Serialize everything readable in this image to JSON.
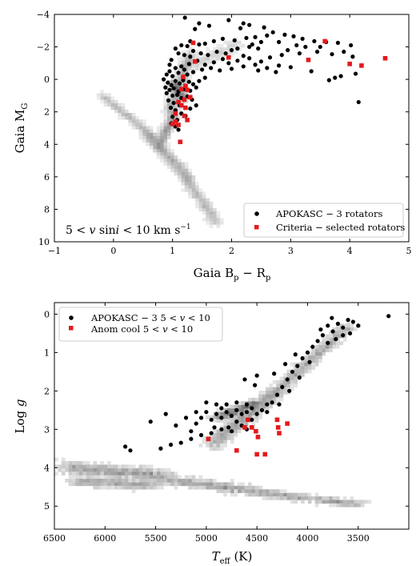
{
  "chart_data": [
    {
      "type": "scatter",
      "xlabel": "Gaia B$_p$ − R$_p$",
      "xlabel_parts": {
        "main": "Gaia B",
        "sub1": "p",
        "mid": " − R",
        "sub2": "p"
      },
      "ylabel_parts": {
        "main": "Gaia M",
        "sub": "G"
      },
      "xlim": [
        -1,
        5
      ],
      "ylim": [
        10,
        -4
      ],
      "y_inverted": true,
      "x_ticks": [
        -1,
        0,
        1,
        2,
        3,
        4,
        5
      ],
      "x_tick_labels": [
        "−1",
        "0",
        "1",
        "2",
        "3",
        "4",
        "5"
      ],
      "y_ticks": [
        -4,
        -2,
        0,
        2,
        4,
        6,
        8,
        10
      ],
      "y_tick_labels": [
        "−4",
        "−2",
        "0",
        "2",
        "4",
        "6",
        "8",
        "10"
      ],
      "annotation": "5 < v sin i < 10 km s⁻¹",
      "legend_position": "bottom-right",
      "background": "grey 2D density histogram (Gaia field stars): red giant branch and main sequence",
      "series": [
        {
          "name": "APOKASC − 3 rotators",
          "marker": "circle",
          "color": "#000000",
          "points": [
            [
              1.21,
              -3.8
            ],
            [
              1.45,
              -3.45
            ],
            [
              1.62,
              -3.3
            ],
            [
              1.38,
              -3.1
            ],
            [
              1.95,
              -3.65
            ],
            [
              2.2,
              -3.45
            ],
            [
              2.3,
              -3.35
            ],
            [
              2.15,
              -3.15
            ],
            [
              2.55,
              -3.2
            ],
            [
              2.7,
              -2.9
            ],
            [
              2.6,
              -2.7
            ],
            [
              2.9,
              -2.75
            ],
            [
              3.05,
              -2.65
            ],
            [
              3.2,
              -2.5
            ],
            [
              3.4,
              -2.35
            ],
            [
              3.6,
              -2.3
            ],
            [
              3.8,
              -2.25
            ],
            [
              4.02,
              -2.1
            ],
            [
              3.5,
              -2.0
            ],
            [
              3.1,
              -2.1
            ],
            [
              2.4,
              -2.6
            ],
            [
              2.25,
              -2.55
            ],
            [
              2.05,
              -2.4
            ],
            [
              1.85,
              -2.5
            ],
            [
              1.7,
              -2.35
            ],
            [
              1.55,
              -2.2
            ],
            [
              1.45,
              -2.15
            ],
            [
              1.3,
              -2.35
            ],
            [
              1.25,
              -2.05
            ],
            [
              1.15,
              -2.1
            ],
            [
              1.05,
              -1.9
            ],
            [
              1.1,
              -1.6
            ],
            [
              1.2,
              -1.5
            ],
            [
              1.3,
              -1.4
            ],
            [
              1.35,
              -1.75
            ],
            [
              1.48,
              -1.6
            ],
            [
              1.6,
              -1.5
            ],
            [
              1.75,
              -1.7
            ],
            [
              1.9,
              -1.6
            ],
            [
              2.0,
              -1.8
            ],
            [
              2.1,
              -1.9
            ],
            [
              2.3,
              -2.0
            ],
            [
              2.45,
              -1.9
            ],
            [
              2.5,
              -2.3
            ],
            [
              2.35,
              -2.15
            ],
            [
              2.8,
              -2.3
            ],
            [
              2.95,
              -1.8
            ],
            [
              3.25,
              -2.0
            ],
            [
              3.45,
              -1.7
            ],
            [
              3.7,
              -1.55
            ],
            [
              3.9,
              -1.7
            ],
            [
              4.05,
              -1.4
            ],
            [
              3.15,
              -1.6
            ],
            [
              2.85,
              -1.5
            ],
            [
              2.65,
              -1.35
            ],
            [
              2.5,
              -1.1
            ],
            [
              2.3,
              -1.3
            ],
            [
              2.2,
              -1.45
            ],
            [
              2.1,
              -1.15
            ],
            [
              1.95,
              -1.0
            ],
            [
              1.85,
              -1.25
            ],
            [
              1.7,
              -1.05
            ],
            [
              1.55,
              -0.9
            ],
            [
              1.42,
              -1.15
            ],
            [
              1.28,
              -0.95
            ],
            [
              1.15,
              -0.8
            ],
            [
              1.05,
              -0.7
            ],
            [
              0.95,
              -0.5
            ],
            [
              0.9,
              -0.3
            ],
            [
              1.0,
              -0.2
            ],
            [
              1.1,
              -0.4
            ],
            [
              1.2,
              -0.6
            ],
            [
              1.25,
              -0.3
            ],
            [
              1.35,
              -0.45
            ],
            [
              1.5,
              -0.6
            ],
            [
              1.65,
              -0.7
            ],
            [
              1.8,
              -0.55
            ],
            [
              2.0,
              -0.65
            ],
            [
              2.2,
              -0.8
            ],
            [
              2.4,
              -0.9
            ],
            [
              2.6,
              -0.7
            ],
            [
              2.8,
              -0.85
            ],
            [
              3.0,
              -0.75
            ],
            [
              3.35,
              -0.5
            ],
            [
              3.75,
              -0.1
            ],
            [
              3.65,
              0.05
            ],
            [
              3.85,
              -0.2
            ],
            [
              4.1,
              -0.35
            ],
            [
              2.75,
              -0.45
            ],
            [
              2.45,
              -0.55
            ],
            [
              0.85,
              0.0
            ],
            [
              0.92,
              0.2
            ],
            [
              0.98,
              0.35
            ],
            [
              1.05,
              0.1
            ],
            [
              1.12,
              0.25
            ],
            [
              1.18,
              0.05
            ],
            [
              1.28,
              0.15
            ],
            [
              1.35,
              0.3
            ],
            [
              1.45,
              0.1
            ],
            [
              1.55,
              -0.1
            ],
            [
              0.88,
              0.5
            ],
            [
              0.95,
              0.65
            ],
            [
              1.02,
              0.55
            ],
            [
              1.1,
              0.75
            ],
            [
              1.2,
              0.6
            ],
            [
              1.3,
              0.7
            ],
            [
              1.4,
              0.5
            ],
            [
              0.9,
              0.85
            ],
            [
              1.0,
              1.0
            ],
            [
              1.08,
              0.95
            ],
            [
              1.15,
              1.15
            ],
            [
              1.25,
              1.05
            ],
            [
              1.33,
              1.25
            ],
            [
              0.93,
              1.3
            ],
            [
              1.02,
              1.45
            ],
            [
              1.12,
              1.6
            ],
            [
              0.97,
              1.75
            ],
            [
              1.05,
              1.9
            ],
            [
              1.15,
              2.1
            ],
            [
              1.0,
              2.3
            ],
            [
              1.08,
              2.5
            ],
            [
              0.98,
              2.7
            ],
            [
              1.05,
              2.9
            ],
            [
              1.1,
              3.1
            ],
            [
              1.22,
              2.25
            ],
            [
              1.3,
              1.8
            ],
            [
              1.4,
              1.6
            ],
            [
              4.15,
              1.4
            ],
            [
              0.95,
              -0.9
            ],
            [
              0.98,
              -1.2
            ]
          ]
        },
        {
          "name": "Criteria − selected rotators",
          "marker": "square",
          "color": "#e41a1c",
          "points": [
            [
              1.35,
              -2.25
            ],
            [
              3.58,
              -2.35
            ],
            [
              1.38,
              -1.1
            ],
            [
              1.95,
              -1.35
            ],
            [
              3.3,
              -1.2
            ],
            [
              4.0,
              -0.95
            ],
            [
              4.2,
              -0.85
            ],
            [
              4.6,
              -1.3
            ],
            [
              1.18,
              -0.15
            ],
            [
              1.22,
              0.4
            ],
            [
              1.15,
              0.6
            ],
            [
              1.25,
              0.65
            ],
            [
              1.3,
              1.1
            ],
            [
              1.2,
              1.25
            ],
            [
              1.1,
              1.4
            ],
            [
              1.15,
              1.6
            ],
            [
              1.22,
              1.75
            ],
            [
              1.05,
              2.1
            ],
            [
              1.2,
              2.25
            ],
            [
              1.25,
              2.5
            ],
            [
              1.05,
              2.6
            ],
            [
              1.0,
              2.75
            ],
            [
              1.1,
              2.8
            ],
            [
              1.13,
              3.85
            ]
          ]
        }
      ]
    },
    {
      "type": "scatter",
      "xlabel_parts": {
        "main": "T",
        "sub": "eff",
        "unit": " (K)"
      },
      "ylabel": "Log g",
      "xlim": [
        6500,
        3000
      ],
      "ylim": [
        5.6,
        -0.3
      ],
      "x_inverted": true,
      "y_inverted": true,
      "x_ticks": [
        6500,
        6000,
        5500,
        5000,
        4500,
        4000,
        3500
      ],
      "x_tick_labels": [
        "6500",
        "6000",
        "5500",
        "5000",
        "4500",
        "4000",
        "3500"
      ],
      "y_ticks": [
        0,
        1,
        2,
        3,
        4,
        5
      ],
      "y_tick_labels": [
        "0",
        "1",
        "2",
        "3",
        "4",
        "5"
      ],
      "legend_position": "top-left",
      "background": "grey 2D density histogram (field stars): giant branch, red clump and main sequence",
      "series": [
        {
          "name": "APOKASC − 3  5 < v < 10",
          "marker": "circle",
          "color": "#000000",
          "points": [
            [
              3200,
              0.05
            ],
            [
              3500,
              0.3
            ],
            [
              3550,
              0.2
            ],
            [
              3600,
              0.15
            ],
            [
              3650,
              0.35
            ],
            [
              3700,
              0.25
            ],
            [
              3750,
              0.45
            ],
            [
              3800,
              0.3
            ],
            [
              3650,
              0.55
            ],
            [
              3580,
              0.5
            ],
            [
              3850,
              0.55
            ],
            [
              3900,
              0.7
            ],
            [
              3950,
              0.85
            ],
            [
              3800,
              0.75
            ],
            [
              3720,
              0.65
            ],
            [
              4000,
              1.0
            ],
            [
              4050,
              1.15
            ],
            [
              3980,
              1.25
            ],
            [
              4100,
              1.35
            ],
            [
              4150,
              1.5
            ],
            [
              4080,
              1.65
            ],
            [
              4200,
              1.7
            ],
            [
              4250,
              1.9
            ],
            [
              4180,
              2.0
            ],
            [
              4300,
              2.1
            ],
            [
              4350,
              2.3
            ],
            [
              4280,
              2.35
            ],
            [
              4400,
              2.35
            ],
            [
              4450,
              2.5
            ],
            [
              4500,
              2.6
            ],
            [
              4550,
              2.45
            ],
            [
              4600,
              2.55
            ],
            [
              4650,
              2.6
            ],
            [
              4700,
              2.5
            ],
            [
              4750,
              2.65
            ],
            [
              4800,
              2.55
            ],
            [
              4850,
              2.7
            ],
            [
              4900,
              2.6
            ],
            [
              4950,
              2.75
            ],
            [
              5000,
              2.55
            ],
            [
              5050,
              2.7
            ],
            [
              5100,
              2.85
            ],
            [
              4700,
              2.8
            ],
            [
              4650,
              2.9
            ],
            [
              4600,
              3.0
            ],
            [
              4750,
              3.05
            ],
            [
              4850,
              3.0
            ],
            [
              4950,
              3.1
            ],
            [
              5050,
              3.15
            ],
            [
              5150,
              3.25
            ],
            [
              5250,
              3.35
            ],
            [
              5350,
              3.4
            ],
            [
              5450,
              3.5
            ],
            [
              5800,
              3.45
            ],
            [
              5750,
              3.55
            ],
            [
              5550,
              2.8
            ],
            [
              5400,
              2.6
            ],
            [
              5300,
              2.9
            ],
            [
              5200,
              2.7
            ],
            [
              4520,
              1.85
            ],
            [
              4620,
              1.7
            ],
            [
              4500,
              1.6
            ],
            [
              4850,
              2.45
            ],
            [
              4900,
              2.35
            ],
            [
              5000,
              2.3
            ],
            [
              4800,
              2.35
            ],
            [
              4700,
              2.3
            ],
            [
              4600,
              2.35
            ],
            [
              4550,
              2.75
            ],
            [
              4400,
              2.55
            ],
            [
              4780,
              2.95
            ],
            [
              5100,
              2.55
            ],
            [
              5150,
              3.05
            ],
            [
              4920,
              2.95
            ],
            [
              3760,
              0.1
            ],
            [
              3870,
              0.4
            ],
            [
              4120,
              1.05
            ],
            [
              4220,
              1.3
            ],
            [
              4330,
              1.55
            ]
          ]
        },
        {
          "name": "Anom cool  5 < v < 10",
          "marker": "square",
          "color": "#e41a1c",
          "points": [
            [
              4980,
              3.25
            ],
            [
              4590,
              2.75
            ],
            [
              4550,
              2.95
            ],
            [
              4510,
              3.05
            ],
            [
              4490,
              3.2
            ],
            [
              4300,
              2.75
            ],
            [
              4290,
              2.95
            ],
            [
              4280,
              3.1
            ],
            [
              4200,
              2.85
            ],
            [
              4620,
              2.95
            ],
            [
              4700,
              3.55
            ],
            [
              4500,
              3.65
            ],
            [
              4420,
              3.65
            ]
          ]
        }
      ]
    }
  ]
}
